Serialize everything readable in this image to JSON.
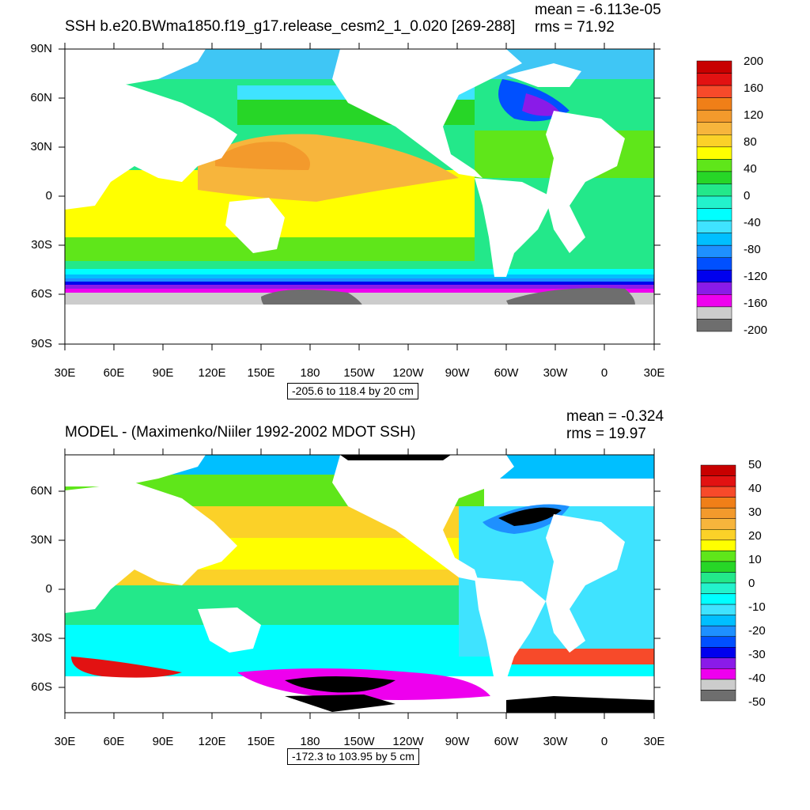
{
  "top_panel": {
    "title": "SSH b.e20.BWma1850.f19_g17.release_cesm2_1_0.020 [269-288]",
    "mean": "mean = -6.113e-05",
    "rms": "rms = 71.92",
    "range": "-205.6 to 118.4 by 20 cm",
    "lat_labels": [
      "90N",
      "60N",
      "30N",
      "0",
      "30S",
      "60S",
      "90S"
    ],
    "lon_labels": [
      "30E",
      "60E",
      "90E",
      "120E",
      "150E",
      "180",
      "150W",
      "120W",
      "90W",
      "60W",
      "30W",
      "0",
      "30E"
    ],
    "colorbar_labels": [
      "200",
      "160",
      "120",
      "80",
      "40",
      "0",
      "-40",
      "-80",
      "-120",
      "-160",
      "-200"
    ],
    "colorbar_colors": [
      "#c80000",
      "#e21212",
      "#f74a2a",
      "#f07f18",
      "#f39a2c",
      "#f7b53c",
      "#fbd128",
      "#ffff00",
      "#5fe61a",
      "#27d627",
      "#23e88a",
      "#23f2cc",
      "#00ffff",
      "#3fe3ff",
      "#00bfff",
      "#1e90ff",
      "#0050ff",
      "#0000ee",
      "#8a1be8",
      "#ee00ee",
      "#cccccc",
      "#6e6e6e"
    ]
  },
  "bottom_panel": {
    "title": "MODEL - (Maximenko/Niiler 1992-2002 MDOT SSH)",
    "mean": "mean = -0.324",
    "rms": "rms = 19.97",
    "range": "-172.3 to 103.95 by 5 cm",
    "lat_labels": [
      "60N",
      "30N",
      "0",
      "30S",
      "60S"
    ],
    "lon_labels": [
      "30E",
      "60E",
      "90E",
      "120E",
      "150E",
      "180",
      "150W",
      "120W",
      "90W",
      "60W",
      "30W",
      "0",
      "30E"
    ],
    "colorbar_labels": [
      "50",
      "40",
      "30",
      "20",
      "10",
      "0",
      "-10",
      "-20",
      "-30",
      "-40",
      "-50"
    ],
    "colorbar_colors": [
      "#c80000",
      "#e21212",
      "#f74a2a",
      "#f07f18",
      "#f39a2c",
      "#f7b53c",
      "#fbd128",
      "#ffff00",
      "#5fe61a",
      "#27d627",
      "#23e88a",
      "#23f2cc",
      "#00ffff",
      "#3fe3ff",
      "#00bfff",
      "#1e90ff",
      "#0050ff",
      "#0000ee",
      "#8a1be8",
      "#ee00ee",
      "#cccccc",
      "#6e6e6e"
    ]
  }
}
